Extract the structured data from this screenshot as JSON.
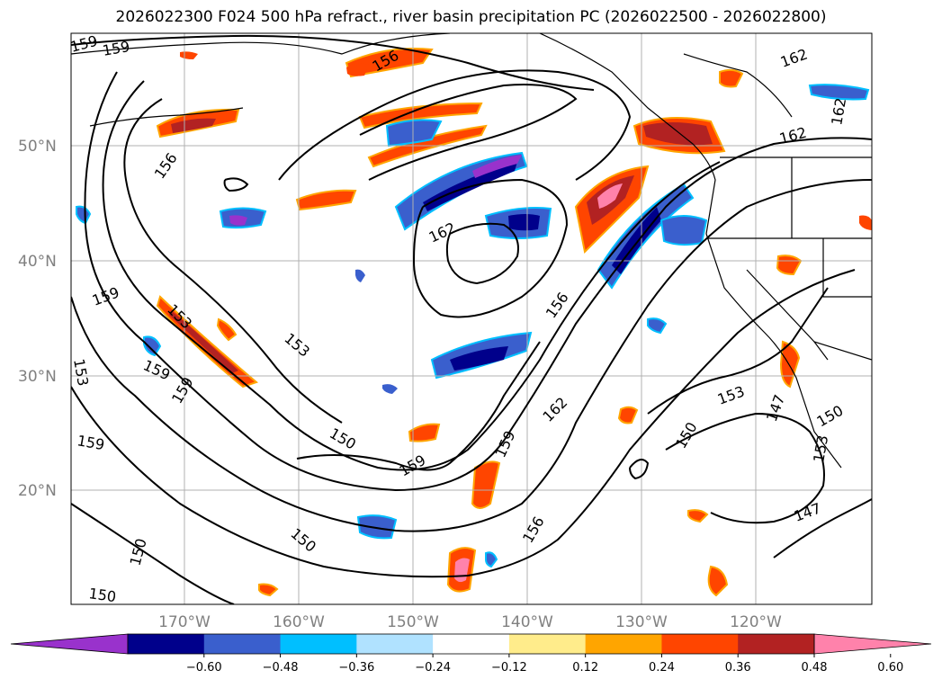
{
  "title": "2026022300 F024 500 hPa refract., river basin precipitation PC (2026022500 - 2026022800)",
  "map": {
    "lat_labels": [
      "50°N",
      "40°N",
      "30°N",
      "20°N"
    ],
    "lon_labels": [
      "170°W",
      "160°W",
      "150°W",
      "140°W",
      "130°W",
      "120°W"
    ],
    "contour_labels": [
      "159",
      "159",
      "156",
      "162",
      "162",
      "156",
      "162",
      "159",
      "153",
      "153",
      "159",
      "159",
      "153",
      "159",
      "150",
      "159",
      "159",
      "162",
      "153",
      "147",
      "150",
      "153",
      "150",
      "156",
      "150",
      "150",
      "147",
      "150",
      "156"
    ]
  },
  "colorbar": {
    "tick_labels": [
      "−0.60",
      "−0.48",
      "−0.36",
      "−0.24",
      "−0.12",
      "0.12",
      "0.24",
      "0.36",
      "0.48",
      "0.60"
    ],
    "colors": [
      "#9932cc",
      "#00008b",
      "#3a5fcd",
      "#00bfff",
      "#b0e2ff",
      "#ffffff",
      "#ffec8b",
      "#ffa500",
      "#ff4500",
      "#b22222",
      "#ff82ab"
    ]
  },
  "colors": {
    "coast": "#000000",
    "contour": "#000000",
    "grid": "#b0b0b0"
  }
}
